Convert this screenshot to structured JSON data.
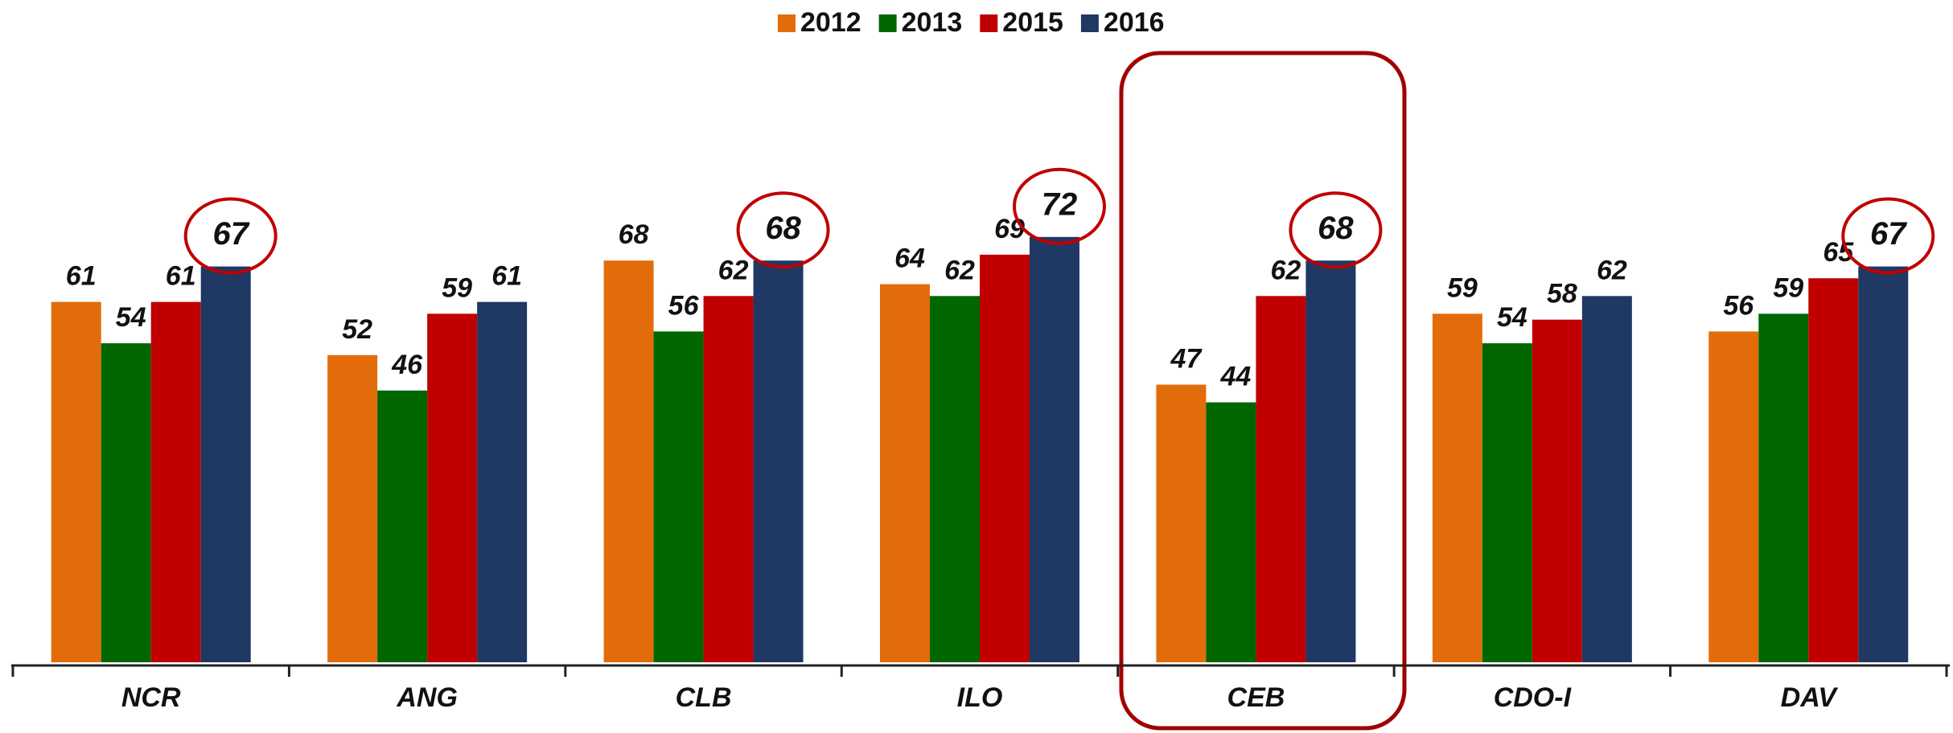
{
  "chart_data": {
    "type": "bar",
    "categories": [
      "NCR",
      "ANG",
      "CLB",
      "ILO",
      "CEB",
      "CDO-I",
      "DAV"
    ],
    "series": [
      {
        "name": "2012",
        "color": "#e36c0a",
        "values": [
          61,
          52,
          68,
          64,
          47,
          59,
          56
        ]
      },
      {
        "name": "2013",
        "color": "#006600",
        "values": [
          54,
          46,
          56,
          62,
          44,
          54,
          59
        ]
      },
      {
        "name": "2015",
        "color": "#c00000",
        "values": [
          61,
          59,
          62,
          69,
          62,
          58,
          65
        ]
      },
      {
        "name": "2016",
        "color": "#1f3864",
        "values": [
          67,
          61,
          68,
          72,
          68,
          62,
          67
        ]
      }
    ],
    "ylim": [
      0,
      100
    ],
    "legend": "top"
  }
}
